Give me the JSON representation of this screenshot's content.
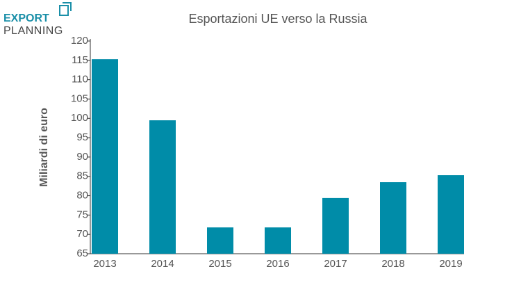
{
  "logo": [
    "EXPORT",
    "PLANNING"
  ],
  "chart_data": {
    "type": "bar",
    "title": "Esportazioni UE verso la Russia",
    "y_label": "Miliardi di euro",
    "categories": [
      "2013",
      "2014",
      "2015",
      "2016",
      "2017",
      "2018",
      "2019"
    ],
    "values": [
      115.3,
      99.5,
      71.8,
      71.8,
      79.4,
      83.5,
      85.3
    ],
    "color": "#008ca8",
    "ylim": [
      65,
      120
    ],
    "yticks": [
      65,
      70,
      75,
      80,
      85,
      90,
      95,
      100,
      105,
      110,
      115,
      120
    ],
    "grid": false
  }
}
